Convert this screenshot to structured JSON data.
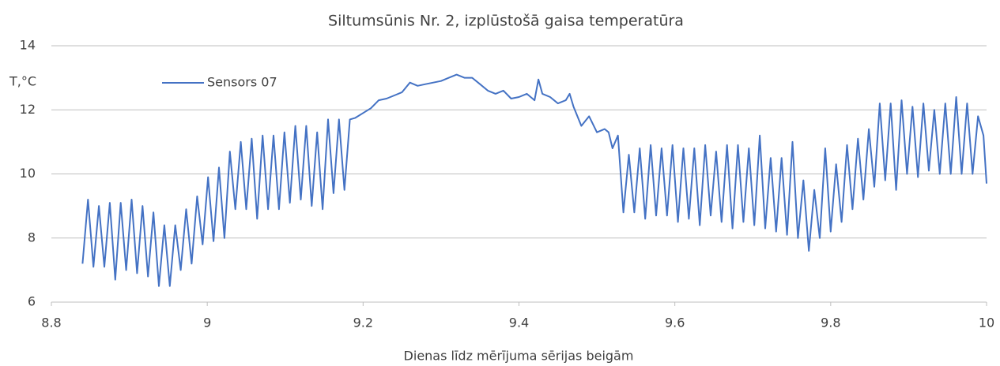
{
  "chart_data": {
    "type": "line",
    "title": "Siltumsūnis Nr. 2, izplūstošā gaisa temperatūra",
    "y_label": "T,°C",
    "x_label": "Dienas līdz mērījuma sērijas beigām",
    "xlim": [
      8.8,
      10
    ],
    "xticks": [
      8.8,
      9,
      9.2,
      9.4,
      9.6,
      9.8,
      10
    ],
    "ylim": [
      6,
      14
    ],
    "yticks": [
      6,
      8,
      10,
      12,
      14
    ],
    "grid": true,
    "legend": "top-left",
    "x": [
      8.84,
      8.847,
      8.854,
      8.861,
      8.868,
      8.875,
      8.882,
      8.889,
      8.896,
      8.903,
      8.91,
      8.917,
      8.924,
      8.931,
      8.938,
      8.945,
      8.952,
      8.959,
      8.966,
      8.973,
      8.98,
      8.987,
      8.994,
      9.001,
      9.008,
      9.015,
      9.022,
      9.029,
      9.036,
      9.043,
      9.05,
      9.057,
      9.064,
      9.071,
      9.078,
      9.085,
      9.092,
      9.099,
      9.106,
      9.113,
      9.12,
      9.127,
      9.134,
      9.141,
      9.148,
      9.155,
      9.162,
      9.169,
      9.176,
      9.183,
      9.19,
      9.2,
      9.21,
      9.22,
      9.23,
      9.24,
      9.25,
      9.26,
      9.27,
      9.28,
      9.29,
      9.3,
      9.31,
      9.32,
      9.33,
      9.34,
      9.35,
      9.36,
      9.37,
      9.38,
      9.39,
      9.4,
      9.41,
      9.42,
      9.425,
      9.43,
      9.44,
      9.45,
      9.46,
      9.465,
      9.47,
      9.48,
      9.49,
      9.5,
      9.51,
      9.515,
      9.52,
      9.527,
      9.534,
      9.541,
      9.548,
      9.555,
      9.562,
      9.569,
      9.576,
      9.583,
      9.59,
      9.597,
      9.604,
      9.611,
      9.618,
      9.625,
      9.632,
      9.639,
      9.646,
      9.653,
      9.66,
      9.667,
      9.674,
      9.681,
      9.688,
      9.695,
      9.702,
      9.709,
      9.716,
      9.723,
      9.73,
      9.737,
      9.744,
      9.751,
      9.758,
      9.765,
      9.772,
      9.779,
      9.786,
      9.793,
      9.8,
      9.807,
      9.814,
      9.821,
      9.828,
      9.835,
      9.842,
      9.849,
      9.856,
      9.863,
      9.87,
      9.877,
      9.884,
      9.891,
      9.898,
      9.905,
      9.912,
      9.919,
      9.926,
      9.933,
      9.94,
      9.947,
      9.954,
      9.961,
      9.968,
      9.975,
      9.982,
      9.989,
      9.996,
      10.0
    ],
    "series": [
      {
        "name": "Sensors 07",
        "color": "#4472c4",
        "values": [
          7.2,
          9.2,
          7.1,
          9.0,
          7.1,
          9.1,
          6.7,
          9.1,
          7.0,
          9.2,
          6.9,
          9.0,
          6.8,
          8.8,
          6.5,
          8.4,
          6.5,
          8.4,
          7.0,
          8.9,
          7.2,
          9.3,
          7.8,
          9.9,
          7.9,
          10.2,
          8.0,
          10.7,
          8.9,
          11.0,
          8.9,
          11.1,
          8.6,
          11.2,
          8.9,
          11.2,
          8.9,
          11.3,
          9.1,
          11.5,
          9.2,
          11.5,
          9.0,
          11.3,
          8.9,
          11.7,
          9.4,
          11.7,
          9.5,
          11.7,
          11.75,
          11.9,
          12.05,
          12.3,
          12.35,
          12.45,
          12.55,
          12.85,
          12.75,
          12.8,
          12.85,
          12.9,
          13.0,
          13.1,
          13.0,
          13.0,
          12.8,
          12.6,
          12.5,
          12.6,
          12.35,
          12.4,
          12.5,
          12.3,
          12.95,
          12.5,
          12.4,
          12.2,
          12.3,
          12.5,
          12.1,
          11.5,
          11.8,
          11.3,
          11.4,
          11.3,
          10.8,
          11.2,
          8.8,
          10.6,
          8.8,
          10.8,
          8.6,
          10.9,
          8.7,
          10.8,
          8.7,
          10.9,
          8.5,
          10.8,
          8.6,
          10.8,
          8.4,
          10.9,
          8.7,
          10.7,
          8.5,
          10.9,
          8.3,
          10.9,
          8.5,
          10.8,
          8.4,
          11.2,
          8.3,
          10.5,
          8.2,
          10.5,
          8.1,
          11.0,
          8.0,
          9.8,
          7.6,
          9.5,
          8.0,
          10.8,
          8.2,
          10.3,
          8.5,
          10.9,
          8.9,
          11.1,
          9.2,
          11.4,
          9.6,
          12.2,
          9.8,
          12.2,
          9.5,
          12.3,
          10.0,
          12.1,
          9.9,
          12.2,
          10.1,
          12.0,
          10.0,
          12.2,
          10.0,
          12.4,
          10.0,
          12.2,
          10.0,
          11.8,
          11.2,
          9.7
        ]
      }
    ]
  }
}
